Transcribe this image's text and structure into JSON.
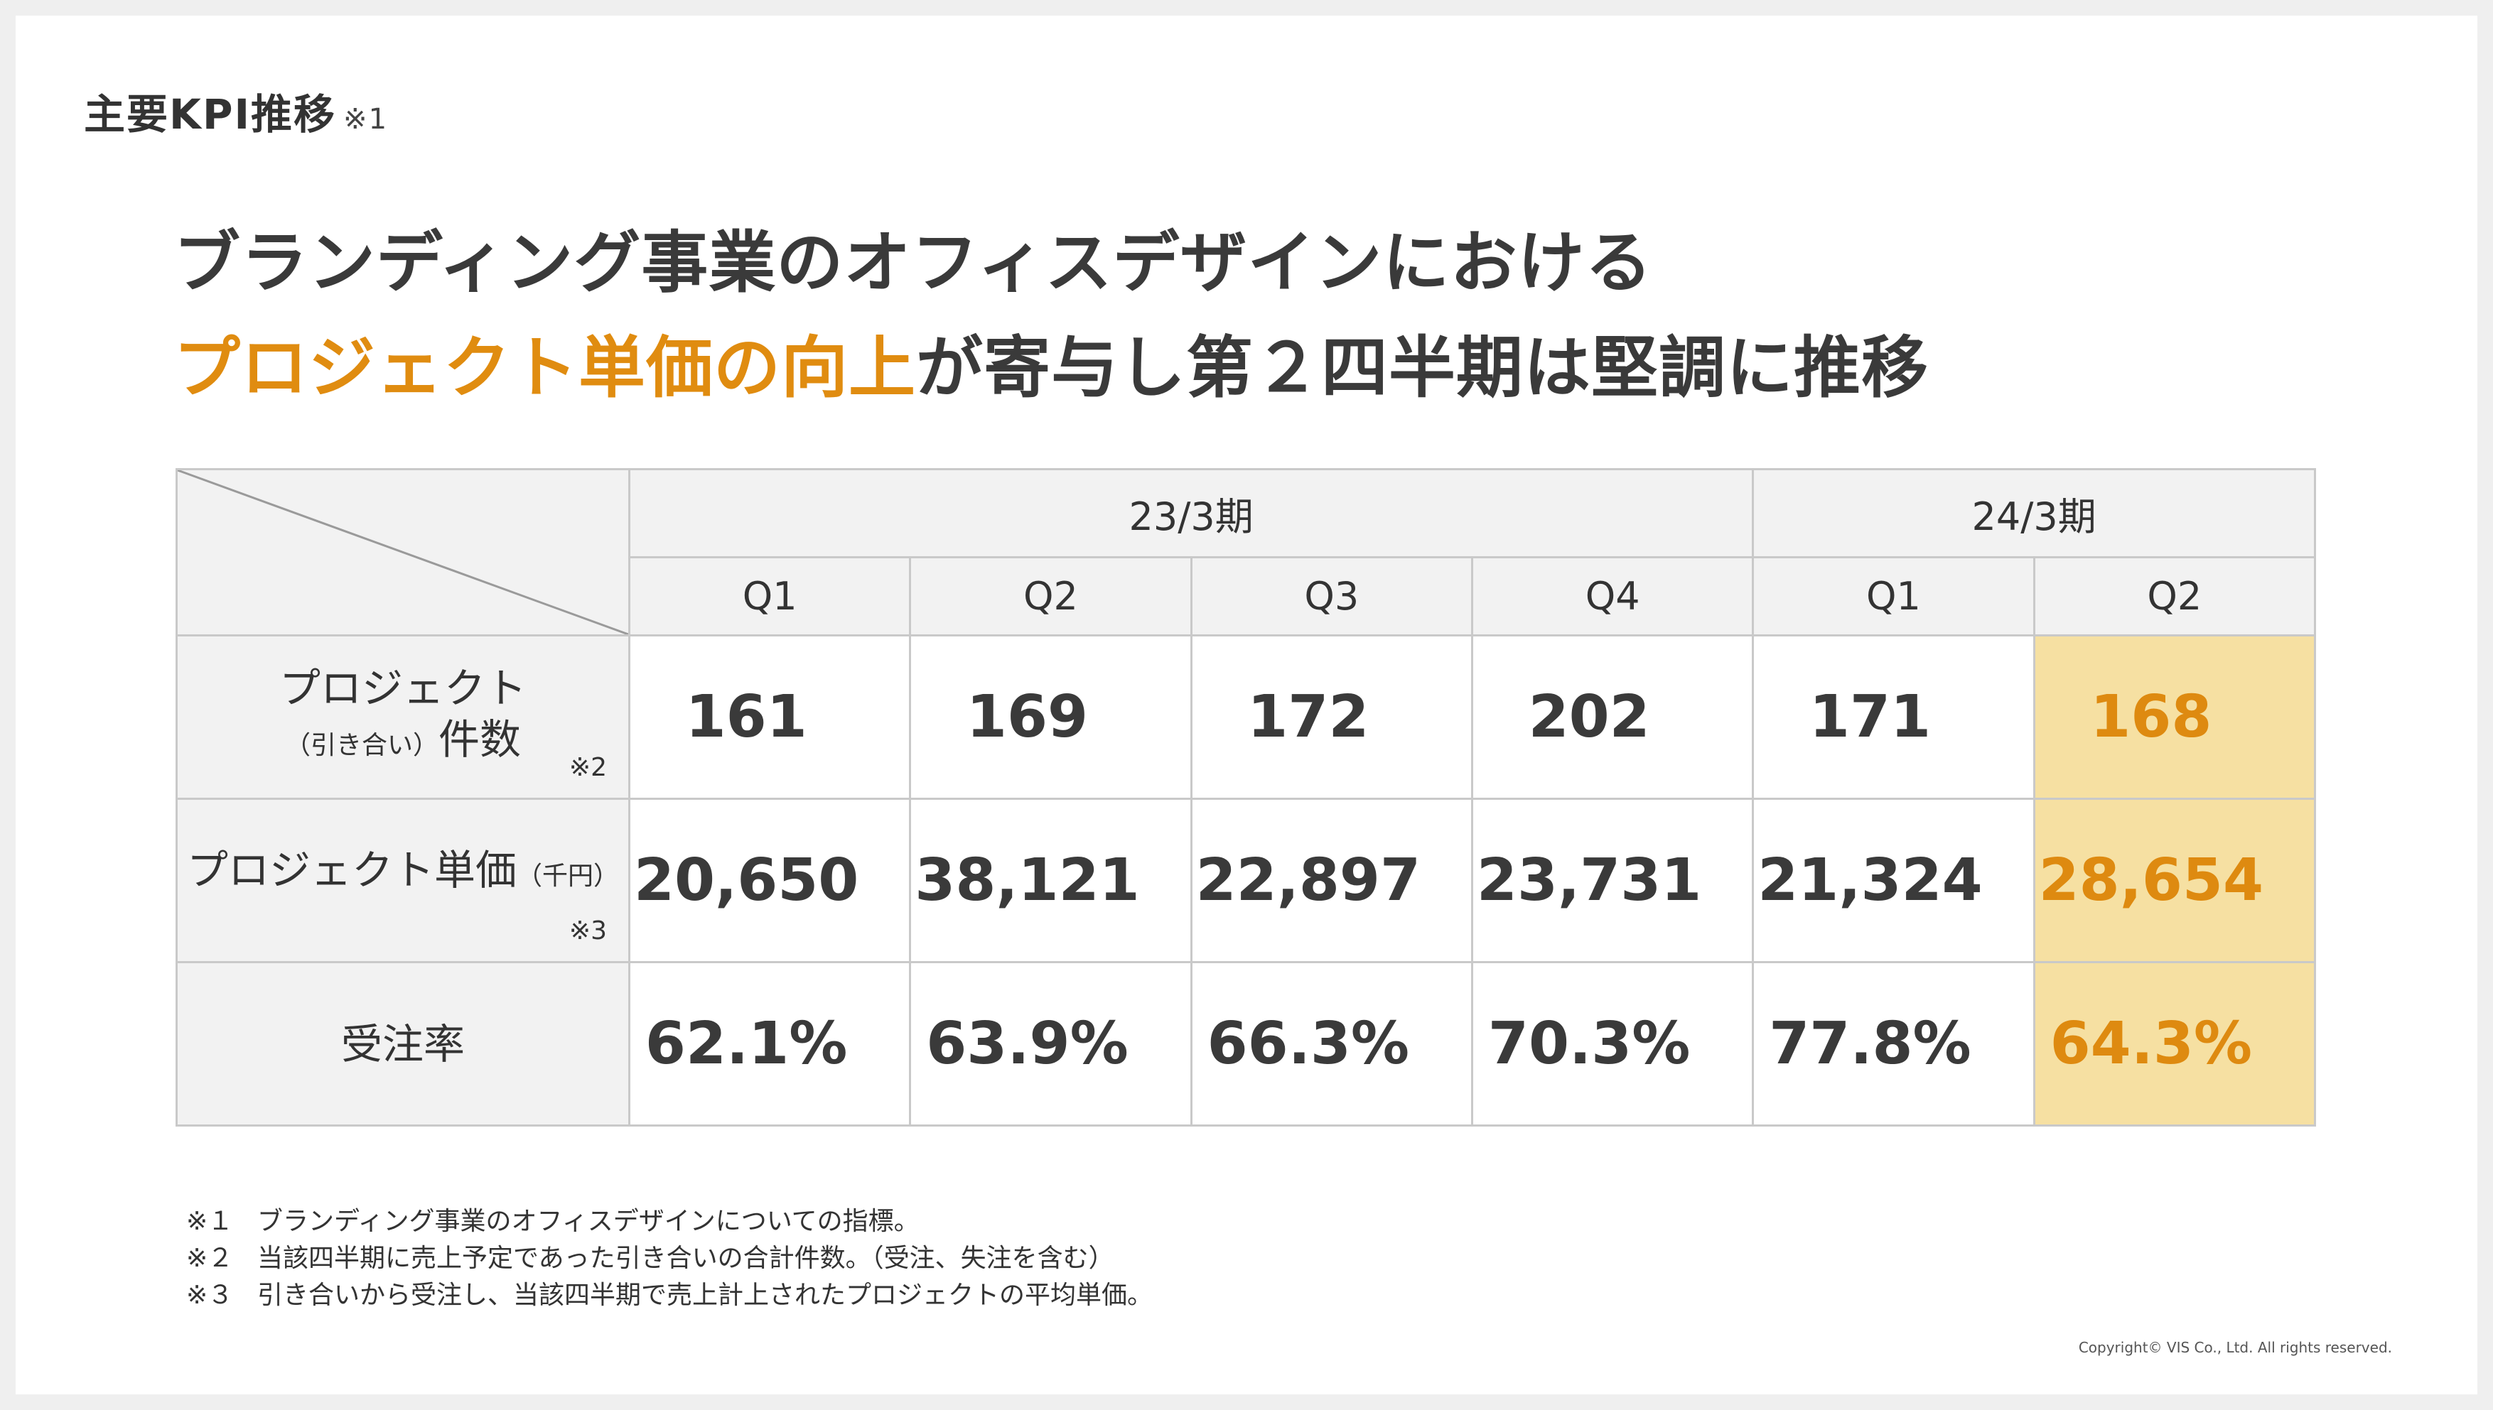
{
  "section": {
    "title": "主要KPI推移",
    "note": "※1"
  },
  "headline": {
    "line1": "ブランディング事業のオフィスデザインにおける",
    "line2_accent": "プロジェクト単価の向上",
    "line2_rest": "が寄与し第２四半期は堅調に推移"
  },
  "table": {
    "periods": [
      {
        "label": "23/3期",
        "span": 4
      },
      {
        "label": "24/3期",
        "span": 2
      }
    ],
    "quarters": [
      "Q1",
      "Q2",
      "Q3",
      "Q4",
      "Q1",
      "Q2"
    ],
    "rows": [
      {
        "label_line1": "プロジェクト",
        "label_sub": "（引き合い）",
        "label_line2": "件数",
        "footnote": "※2",
        "values": [
          "161",
          "169",
          "172",
          "202",
          "171",
          "168"
        ]
      },
      {
        "label_line1": "プロジェクト単価",
        "label_sub": "（千円）",
        "footnote": "※3",
        "values": [
          "20,650",
          "38,121",
          "22,897",
          "23,731",
          "21,324",
          "28,654"
        ]
      },
      {
        "label_line1": "受注率",
        "values": [
          "62.1%",
          "63.9%",
          "66.3%",
          "70.3%",
          "77.8%",
          "64.3%"
        ]
      }
    ],
    "highlight_color": "#f6e0a2",
    "accent_color": "#de8a10"
  },
  "notes": [
    {
      "mark": "※１",
      "text": "ブランディング事業のオフィスデザインについての指標。"
    },
    {
      "mark": "※２",
      "text": "当該四半期に売上予定であった引き合いの合計件数。（受注、失注を含む）"
    },
    {
      "mark": "※３",
      "text": "引き合いから受注し、当該四半期で売上計上されたプロジェクトの平均単価。"
    }
  ],
  "copyright": "Copyright© VIS Co., Ltd. All rights reserved."
}
